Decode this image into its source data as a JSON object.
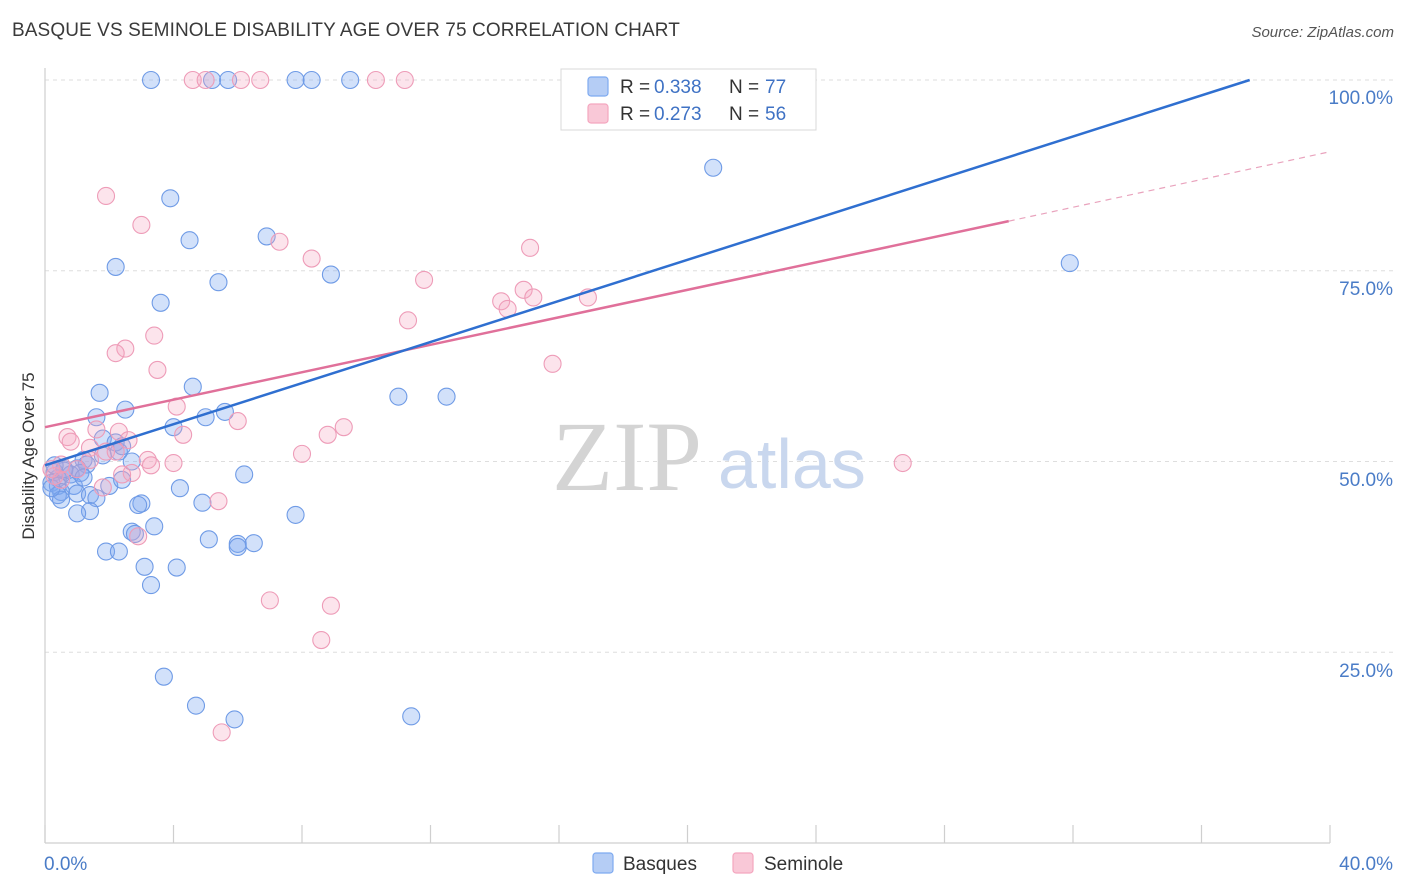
{
  "header": {
    "title": "BASQUE VS SEMINOLE DISABILITY AGE OVER 75 CORRELATION CHART",
    "source": "Source: ZipAtlas.com"
  },
  "watermark": {
    "zip": "ZIP",
    "atlas": "atlas"
  },
  "legend": {
    "basques": {
      "r_label": "R =",
      "r_value": "0.338",
      "n_label": "N =",
      "n_value": "77"
    },
    "seminole": {
      "r_label": "R =",
      "r_value": "0.273",
      "n_label": "N =",
      "n_value": "56"
    }
  },
  "bottom_legend": {
    "basques": "Basques",
    "seminole": "Seminole"
  },
  "chart_data": {
    "type": "scatter",
    "title": "BASQUE VS SEMINOLE DISABILITY AGE OVER 75 CORRELATION CHART",
    "ylabel": "Disability Age Over 75",
    "xlabel": "",
    "xlim": [
      0,
      40
    ],
    "ylim": [
      0,
      104
    ],
    "x_tick_labels": [
      "0.0%",
      "40.0%"
    ],
    "y_ticks": [
      25,
      50,
      75,
      100
    ],
    "y_tick_labels": [
      "25.0%",
      "50.0%",
      "75.0%",
      "100.0%"
    ],
    "grid": true,
    "colors": {
      "basques": "#7eaaf0",
      "basques_line": "#2f6fd0",
      "seminole": "#f4a6bf",
      "seminole_line": "#e0709a"
    },
    "series": [
      {
        "name": "Basques",
        "points": [
          [
            3.3,
            100
          ],
          [
            5.2,
            100
          ],
          [
            5.7,
            100
          ],
          [
            7.8,
            100
          ],
          [
            8.3,
            100
          ],
          [
            9.5,
            100
          ],
          [
            20.8,
            88.5
          ],
          [
            3.9,
            84.5
          ],
          [
            4.5,
            79
          ],
          [
            6.9,
            79.5
          ],
          [
            2.2,
            75.5
          ],
          [
            8.9,
            74.5
          ],
          [
            5.4,
            73.5
          ],
          [
            31.9,
            76
          ],
          [
            3.6,
            70.8
          ],
          [
            1.7,
            59
          ],
          [
            4.6,
            59.8
          ],
          [
            11,
            58.5
          ],
          [
            12.5,
            58.5
          ],
          [
            2.5,
            56.8
          ],
          [
            5.6,
            56.5
          ],
          [
            1.6,
            55.8
          ],
          [
            5.0,
            55.8
          ],
          [
            4.0,
            54.5
          ],
          [
            1.8,
            53
          ],
          [
            2.2,
            52.5
          ],
          [
            2.3,
            51.3
          ],
          [
            1.8,
            50.8
          ],
          [
            2.7,
            50
          ],
          [
            1.2,
            50.2
          ],
          [
            1.3,
            49.6
          ],
          [
            1.0,
            49.1
          ],
          [
            0.6,
            48.8
          ],
          [
            0.8,
            48.3
          ],
          [
            0.3,
            48.6
          ],
          [
            0.4,
            47.8
          ],
          [
            0.2,
            47.2
          ],
          [
            0.4,
            46.8
          ],
          [
            0.9,
            46.8
          ],
          [
            2.0,
            46.8
          ],
          [
            4.2,
            46.5
          ],
          [
            0.5,
            46
          ],
          [
            0.4,
            45.6
          ],
          [
            1.0,
            45.8
          ],
          [
            1.4,
            45.6
          ],
          [
            1.6,
            45.2
          ],
          [
            0.5,
            45
          ],
          [
            3.0,
            44.5
          ],
          [
            2.9,
            44.3
          ],
          [
            4.9,
            44.6
          ],
          [
            6.2,
            48.3
          ],
          [
            1.4,
            43.5
          ],
          [
            1.0,
            43.2
          ],
          [
            7.8,
            43
          ],
          [
            3.4,
            41.5
          ],
          [
            2.7,
            40.8
          ],
          [
            2.8,
            40.5
          ],
          [
            5.1,
            39.8
          ],
          [
            6.0,
            39.2
          ],
          [
            6.0,
            38.8
          ],
          [
            6.5,
            39.3
          ],
          [
            1.9,
            38.2
          ],
          [
            2.3,
            38.2
          ],
          [
            3.1,
            36.2
          ],
          [
            4.1,
            36.1
          ],
          [
            3.3,
            33.8
          ],
          [
            3.7,
            21.8
          ],
          [
            4.7,
            18
          ],
          [
            5.9,
            16.2
          ],
          [
            11.4,
            16.6
          ],
          [
            2.4,
            52
          ],
          [
            0.2,
            46.5
          ],
          [
            0.6,
            49
          ],
          [
            1.1,
            48.5
          ],
          [
            2.4,
            47.6
          ],
          [
            0.3,
            49.5
          ],
          [
            1.2,
            47.9
          ]
        ]
      },
      {
        "name": "Seminole",
        "points": [
          [
            4.6,
            100
          ],
          [
            5.0,
            100
          ],
          [
            6.1,
            100
          ],
          [
            6.7,
            100
          ],
          [
            10.3,
            100
          ],
          [
            11.2,
            100
          ],
          [
            1.9,
            84.8
          ],
          [
            3.0,
            81
          ],
          [
            7.3,
            78.8
          ],
          [
            8.3,
            76.6
          ],
          [
            15.1,
            78
          ],
          [
            11.8,
            73.8
          ],
          [
            14.2,
            71
          ],
          [
            14.4,
            70
          ],
          [
            14.9,
            72.5
          ],
          [
            15.2,
            71.5
          ],
          [
            16.9,
            71.5
          ],
          [
            11.3,
            68.5
          ],
          [
            3.4,
            66.5
          ],
          [
            2.5,
            64.8
          ],
          [
            2.2,
            64.2
          ],
          [
            3.5,
            62
          ],
          [
            15.8,
            62.8
          ],
          [
            4.1,
            57.2
          ],
          [
            6.0,
            55.3
          ],
          [
            1.6,
            54.2
          ],
          [
            2.3,
            53.9
          ],
          [
            4.3,
            53.5
          ],
          [
            8.8,
            53.5
          ],
          [
            9.3,
            54.5
          ],
          [
            0.7,
            53.2
          ],
          [
            0.8,
            52.6
          ],
          [
            2.6,
            52.8
          ],
          [
            1.4,
            51.8
          ],
          [
            1.9,
            51.3
          ],
          [
            8.0,
            51
          ],
          [
            2.2,
            51.3
          ],
          [
            1.4,
            50.2
          ],
          [
            3.2,
            50.2
          ],
          [
            4.0,
            49.8
          ],
          [
            3.3,
            49.5
          ],
          [
            26.7,
            49.8
          ],
          [
            0.5,
            49.6
          ],
          [
            1.0,
            49
          ],
          [
            2.7,
            48.5
          ],
          [
            0.3,
            48.1
          ],
          [
            0.5,
            47.6
          ],
          [
            1.8,
            46.6
          ],
          [
            5.4,
            44.8
          ],
          [
            2.9,
            40.2
          ],
          [
            7.0,
            31.8
          ],
          [
            8.9,
            31.1
          ],
          [
            8.6,
            26.6
          ],
          [
            5.5,
            14.5
          ],
          [
            0.2,
            49
          ],
          [
            2.4,
            48.3
          ]
        ]
      }
    ],
    "trend_lines": [
      {
        "name": "Basques",
        "x": [
          0,
          37.5
        ],
        "y": [
          49.5,
          100
        ]
      },
      {
        "name": "Seminole",
        "x": [
          0,
          30
        ],
        "y": [
          54.5,
          81.5
        ],
        "dashed_extension": {
          "x": [
            30,
            40
          ],
          "y": [
            81.5,
            90.6
          ]
        }
      }
    ]
  }
}
